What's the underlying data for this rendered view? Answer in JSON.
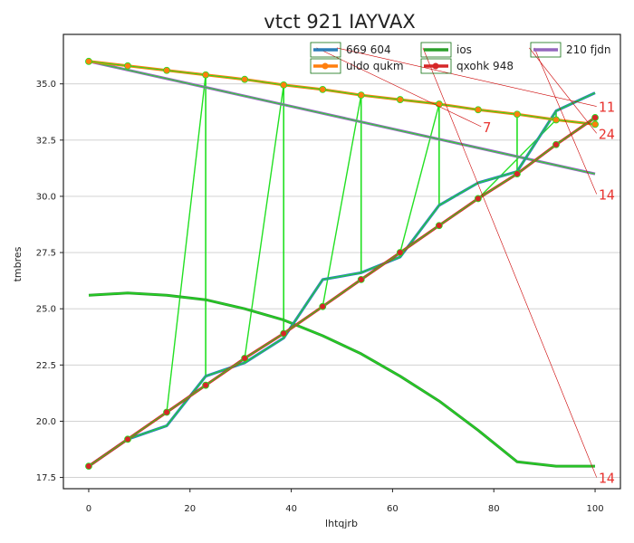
{
  "chart_data": {
    "type": "line",
    "title": "vtct 921 IAYVAX",
    "xlabel": "lhtqjrb",
    "ylabel": "tmbres",
    "xlim": [
      -5,
      105
    ],
    "ylim": [
      17,
      37.2
    ],
    "xticks": [
      0,
      20,
      40,
      60,
      80,
      100
    ],
    "yticks": [
      17.5,
      20.0,
      22.5,
      25.0,
      27.5,
      30.0,
      32.5,
      35.0
    ],
    "grid": "horizontal",
    "legend_position": "top-right",
    "series": [
      {
        "name": "669 604",
        "color": "#2c7fb8",
        "marker": "none",
        "x": [
          0,
          7.7,
          15.4,
          23.1,
          30.8,
          38.5,
          46.2,
          53.8,
          61.5,
          69.2,
          76.9,
          84.6,
          92.3,
          100
        ],
        "y": [
          18.0,
          19.2,
          19.8,
          22.0,
          22.6,
          23.7,
          26.3,
          26.6,
          27.3,
          29.6,
          30.6,
          31.1,
          33.8,
          34.6
        ]
      },
      {
        "name": "uldo qukm",
        "color": "#ff7f0e",
        "marker": "circle",
        "x": [
          0,
          7.7,
          15.4,
          23.1,
          30.8,
          38.5,
          46.2,
          53.8,
          61.5,
          69.2,
          76.9,
          84.6,
          92.3,
          100
        ],
        "y": [
          36.0,
          35.8,
          35.6,
          35.4,
          35.2,
          34.95,
          34.75,
          34.5,
          34.3,
          34.1,
          33.85,
          33.65,
          33.4,
          33.2
        ]
      },
      {
        "name": "ios",
        "color": "#2ca02c",
        "marker": "none",
        "x": [
          0,
          7.7,
          15.4,
          23.1,
          30.8,
          38.5,
          46.2,
          53.8,
          61.5,
          69.2,
          76.9,
          84.6,
          92.3,
          100
        ],
        "y": [
          25.6,
          25.7,
          25.6,
          25.4,
          25.0,
          24.5,
          23.8,
          23.0,
          22.0,
          20.9,
          19.6,
          18.2,
          18.0,
          18.0
        ]
      },
      {
        "name": "qxohk 948",
        "color": "#d62728",
        "marker": "circle",
        "x": [
          0,
          7.7,
          15.4,
          23.1,
          30.8,
          38.5,
          46.2,
          53.8,
          61.5,
          69.2,
          76.9,
          84.6,
          92.3,
          100
        ],
        "y": [
          18.0,
          19.2,
          20.4,
          21.6,
          22.8,
          23.9,
          25.1,
          26.3,
          27.5,
          28.7,
          29.9,
          31.0,
          32.3,
          33.5
        ]
      },
      {
        "name": "210 fjdn",
        "color": "#9467bd",
        "marker": "none",
        "x": [
          0,
          100
        ],
        "y": [
          36.0,
          31.0
        ]
      }
    ],
    "annotations": [
      {
        "text": "7",
        "x": 77.5,
        "y": 33.1,
        "target_x": 45,
        "target_y": 36.6
      },
      {
        "text": "11",
        "x": 100.3,
        "y": 34.0,
        "target_x": 49,
        "target_y": 36.6
      },
      {
        "text": "24",
        "x": 100.3,
        "y": 32.8,
        "target_x": 87,
        "target_y": 36.6
      },
      {
        "text": "14",
        "x": 100.3,
        "y": 30.1,
        "target_x": 88,
        "target_y": 36.6
      },
      {
        "text": "14",
        "x": 100.3,
        "y": 17.5,
        "target_x": 66,
        "target_y": 36.6
      }
    ]
  }
}
